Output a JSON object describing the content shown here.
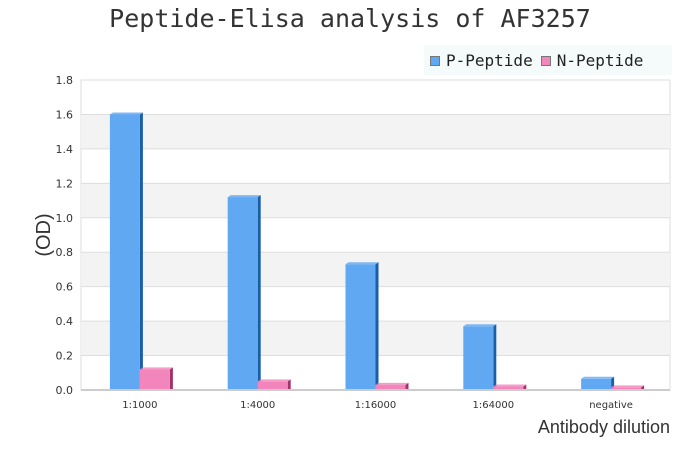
{
  "chart_data": {
    "type": "bar",
    "title": "Peptide-Elisa analysis of AF3257",
    "xlabel": "Antibody dilution",
    "ylabel": "(OD)",
    "ylim": [
      0,
      1.8
    ],
    "yticks": [
      "0.0",
      "0.2",
      "0.4",
      "0.6",
      "0.8",
      "1.0",
      "1.2",
      "1.4",
      "1.6",
      "1.8"
    ],
    "categories": [
      "1:1000",
      "1:4000",
      "1:16000",
      "1:64000",
      "negative"
    ],
    "series": [
      {
        "name": "P-Peptide",
        "values": [
          1.6,
          1.12,
          0.73,
          0.37,
          0.065
        ],
        "color": "#60a8f2",
        "side": "#1a5eaa"
      },
      {
        "name": "N-Peptide",
        "values": [
          0.12,
          0.05,
          0.03,
          0.02,
          0.015
        ],
        "color": "#f285bc",
        "side": "#a0336b"
      }
    ],
    "grid": true,
    "legend": "top-right"
  }
}
